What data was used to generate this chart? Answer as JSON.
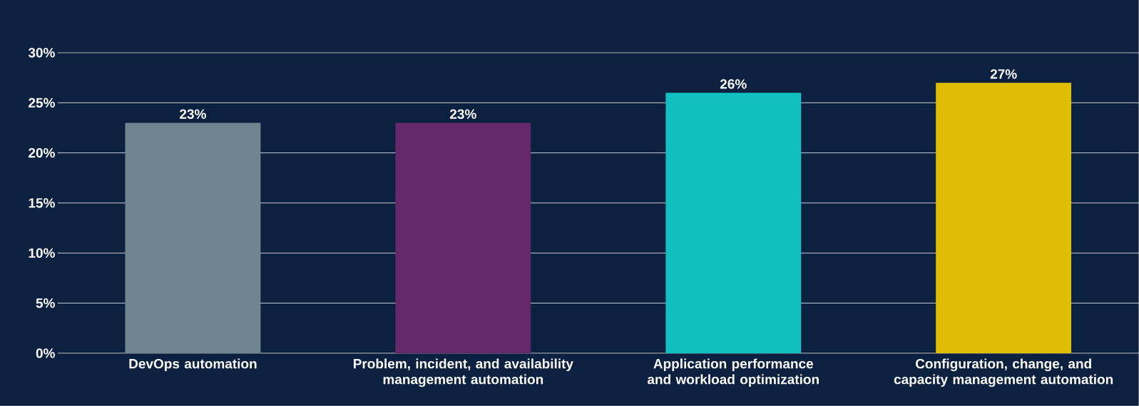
{
  "chart_data": {
    "type": "bar",
    "categories": [
      "DevOps automation",
      "Problem, incident, and availability management automation",
      "Application performance and workload optimization",
      "Configuration, change, and capacity management automation"
    ],
    "values": [
      23,
      23,
      26,
      27
    ],
    "colors": [
      "#6f8690",
      "#65296a",
      "#11c0c0",
      "#e0bd05"
    ],
    "value_labels": [
      "23%",
      "23%",
      "26%",
      "27%"
    ],
    "ylim": [
      0,
      30
    ],
    "yticks": [
      {
        "value": 0,
        "label": "0%"
      },
      {
        "value": 5,
        "label": "5%"
      },
      {
        "value": 10,
        "label": "10%"
      },
      {
        "value": 15,
        "label": "15%"
      },
      {
        "value": 20,
        "label": "20%"
      },
      {
        "value": 25,
        "label": "25%"
      },
      {
        "value": 30,
        "label": "30%"
      }
    ],
    "grid": "y"
  }
}
